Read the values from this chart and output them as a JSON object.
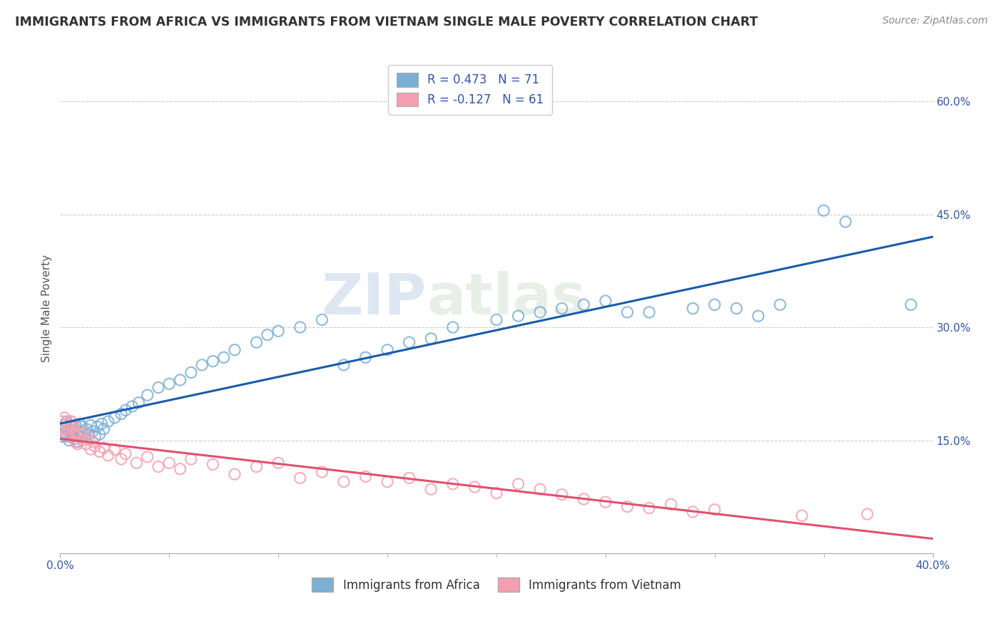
{
  "title": "IMMIGRANTS FROM AFRICA VS IMMIGRANTS FROM VIETNAM SINGLE MALE POVERTY CORRELATION CHART",
  "source": "Source: ZipAtlas.com",
  "ylabel": "Single Male Poverty",
  "ylabel_right_ticks": [
    "60.0%",
    "45.0%",
    "30.0%",
    "15.0%"
  ],
  "ylabel_right_vals": [
    0.6,
    0.45,
    0.3,
    0.15
  ],
  "legend_r1": "R = 0.473   N = 71",
  "legend_r2": "R = -0.127   N = 61",
  "color_africa": "#7BAFD4",
  "color_vietnam": "#F4A0B0",
  "color_africa_line": "#1A5CA8",
  "color_vietnam_line": "#E05070",
  "watermark_zip": "ZIP",
  "watermark_atlas": "atlas",
  "africa_scatter_x": [
    0.001,
    0.002,
    0.002,
    0.003,
    0.003,
    0.004,
    0.004,
    0.005,
    0.005,
    0.006,
    0.006,
    0.007,
    0.007,
    0.008,
    0.008,
    0.009,
    0.009,
    0.01,
    0.01,
    0.011,
    0.012,
    0.013,
    0.014,
    0.015,
    0.016,
    0.017,
    0.018,
    0.019,
    0.02,
    0.022,
    0.025,
    0.028,
    0.03,
    0.033,
    0.036,
    0.04,
    0.045,
    0.05,
    0.055,
    0.06,
    0.065,
    0.07,
    0.075,
    0.08,
    0.09,
    0.095,
    0.1,
    0.11,
    0.12,
    0.13,
    0.14,
    0.15,
    0.16,
    0.17,
    0.18,
    0.2,
    0.21,
    0.22,
    0.23,
    0.24,
    0.25,
    0.26,
    0.27,
    0.29,
    0.3,
    0.31,
    0.32,
    0.33,
    0.35,
    0.36,
    0.39
  ],
  "africa_scatter_y": [
    0.155,
    0.16,
    0.17,
    0.155,
    0.175,
    0.165,
    0.15,
    0.16,
    0.175,
    0.155,
    0.168,
    0.152,
    0.17,
    0.158,
    0.148,
    0.162,
    0.172,
    0.155,
    0.168,
    0.16,
    0.165,
    0.158,
    0.17,
    0.162,
    0.155,
    0.168,
    0.158,
    0.172,
    0.165,
    0.175,
    0.18,
    0.185,
    0.19,
    0.195,
    0.2,
    0.21,
    0.22,
    0.225,
    0.23,
    0.24,
    0.25,
    0.255,
    0.26,
    0.27,
    0.28,
    0.29,
    0.295,
    0.3,
    0.31,
    0.25,
    0.26,
    0.27,
    0.28,
    0.285,
    0.3,
    0.31,
    0.315,
    0.32,
    0.325,
    0.33,
    0.335,
    0.32,
    0.32,
    0.325,
    0.33,
    0.325,
    0.315,
    0.33,
    0.455,
    0.44,
    0.33
  ],
  "vietnam_scatter_x": [
    0.001,
    0.002,
    0.002,
    0.003,
    0.003,
    0.004,
    0.004,
    0.005,
    0.005,
    0.006,
    0.006,
    0.007,
    0.007,
    0.008,
    0.008,
    0.009,
    0.01,
    0.011,
    0.012,
    0.013,
    0.014,
    0.015,
    0.016,
    0.018,
    0.02,
    0.022,
    0.025,
    0.028,
    0.03,
    0.035,
    0.04,
    0.045,
    0.05,
    0.055,
    0.06,
    0.07,
    0.08,
    0.09,
    0.1,
    0.11,
    0.12,
    0.13,
    0.14,
    0.15,
    0.16,
    0.17,
    0.18,
    0.19,
    0.2,
    0.21,
    0.22,
    0.23,
    0.24,
    0.25,
    0.26,
    0.27,
    0.28,
    0.29,
    0.3,
    0.34,
    0.37
  ],
  "vietnam_scatter_y": [
    0.175,
    0.165,
    0.18,
    0.158,
    0.172,
    0.165,
    0.155,
    0.168,
    0.175,
    0.16,
    0.17,
    0.148,
    0.162,
    0.155,
    0.145,
    0.158,
    0.15,
    0.16,
    0.145,
    0.152,
    0.138,
    0.148,
    0.142,
    0.135,
    0.14,
    0.13,
    0.138,
    0.125,
    0.132,
    0.12,
    0.128,
    0.115,
    0.12,
    0.112,
    0.125,
    0.118,
    0.105,
    0.115,
    0.12,
    0.1,
    0.108,
    0.095,
    0.102,
    0.095,
    0.1,
    0.085,
    0.092,
    0.088,
    0.08,
    0.092,
    0.085,
    0.078,
    0.072,
    0.068,
    0.062,
    0.06,
    0.065,
    0.055,
    0.058,
    0.05,
    0.052
  ],
  "xlim": [
    0.0,
    0.4
  ],
  "ylim": [
    0.0,
    0.65
  ]
}
